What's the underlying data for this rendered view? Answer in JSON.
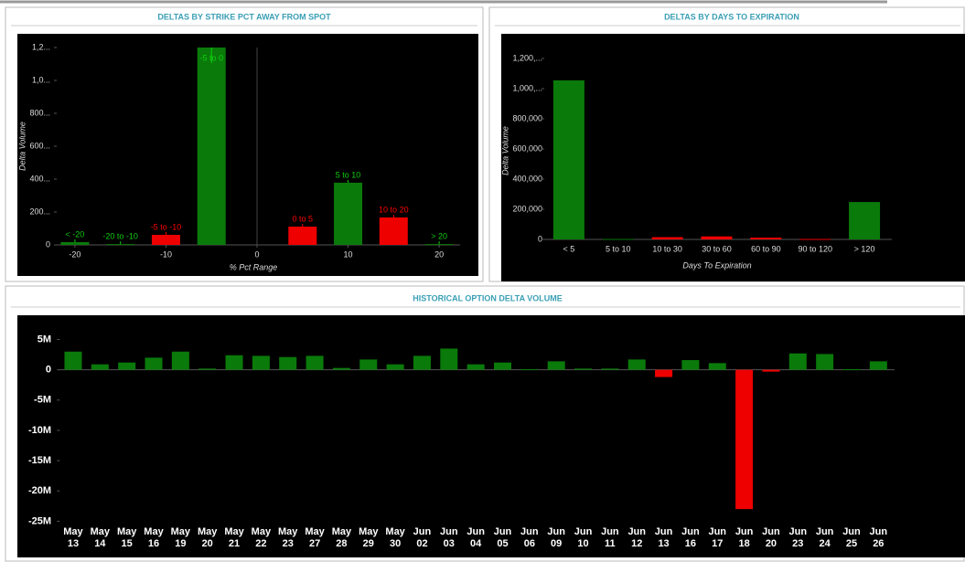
{
  "chart_data": [
    {
      "type": "bar",
      "title": "DELTAS BY STRIKE PCT AWAY FROM SPOT",
      "x_label": "% Pct Range",
      "y_label": "Delta Volume",
      "categories": [
        "< -20",
        "-20 to -10",
        "-5 to -10",
        "-5 to 0",
        "0 to 5",
        "5 to 10",
        "10 to 20",
        "> 20"
      ],
      "x": [
        -20,
        -15,
        -10,
        -5,
        5,
        10,
        15,
        20
      ],
      "values": [
        17,
        5,
        61,
        1200,
        111,
        378,
        167,
        5
      ],
      "colors": [
        "#0a7a0a",
        "#0a7a0a",
        "#ee0000",
        "#0a7a0a",
        "#ee0000",
        "#0a7a0a",
        "#ee0000",
        "#0a7a0a"
      ],
      "xlim": [
        -22,
        22
      ],
      "xticks": [
        -20,
        -10,
        0,
        10,
        20
      ],
      "ylim": [
        0,
        1200
      ],
      "yticks": [
        0,
        {
          "value": 200,
          "label": "200..."
        },
        {
          "value": 400,
          "label": "400..."
        },
        {
          "value": 600,
          "label": "600..."
        },
        {
          "value": 800,
          "label": "800..."
        },
        {
          "value": 1000,
          "label": "1,0..."
        },
        {
          "value": 1200,
          "label": "1,2..."
        }
      ]
    },
    {
      "type": "bar",
      "title": "DELTAS BY DAYS TO EXPIRATION",
      "x_label": "Days To Expiration",
      "y_label": "Delta Volume",
      "categories": [
        "< 5",
        "5 to 10",
        "10 to 30",
        "30 to 60",
        "60 to 90",
        "90 to 120",
        "> 120"
      ],
      "values": [
        1055000,
        3000,
        15000,
        20000,
        12000,
        3000,
        248000
      ],
      "colors": [
        "#0a7a0a",
        "#0a7a0a",
        "#ee0000",
        "#ee0000",
        "#ee0000",
        "#ee0000",
        "#0a7a0a"
      ],
      "ylim": [
        0,
        1200000
      ],
      "yticks": [
        0,
        {
          "value": 200000,
          "label": "200,000"
        },
        {
          "value": 400000,
          "label": "400,000"
        },
        {
          "value": 600000,
          "label": "600,000"
        },
        {
          "value": 800000,
          "label": "800,000"
        },
        {
          "value": 1000000,
          "label": "1,000,..."
        },
        {
          "value": 1200000,
          "label": "1,200,..."
        }
      ]
    },
    {
      "type": "bar",
      "title": "HISTORICAL OPTION DELTA VOLUME",
      "categories": [
        "May 13",
        "May 14",
        "May 15",
        "May 16",
        "May 19",
        "May 20",
        "May 21",
        "May 22",
        "May 23",
        "May 27",
        "May 28",
        "May 29",
        "May 30",
        "Jun 02",
        "Jun 03",
        "Jun 04",
        "Jun 05",
        "Jun 06",
        "Jun 09",
        "Jun 10",
        "Jun 11",
        "Jun 12",
        "Jun 13",
        "Jun 16",
        "Jun 17",
        "Jun 18",
        "Jun 20",
        "Jun 23",
        "Jun 24",
        "Jun 25",
        "Jun 26"
      ],
      "values": [
        3000000,
        900000,
        1200000,
        2000000,
        3000000,
        200000,
        2400000,
        2300000,
        2100000,
        2300000,
        300000,
        1700000,
        900000,
        2300000,
        3500000,
        900000,
        1200000,
        100000,
        1400000,
        200000,
        200000,
        1700000,
        -1200000,
        1600000,
        1100000,
        -23000000,
        -300000,
        2700000,
        2600000,
        100000,
        1400000
      ],
      "color": "#0a7a0a",
      "negative_color": "#ee0000",
      "ylim": [
        -26000000,
        9000000
      ],
      "yticks": [
        {
          "value": 5000000,
          "label": "5M"
        },
        0,
        {
          "value": -5000000,
          "label": "-5M"
        },
        {
          "value": -10000000,
          "label": "-10M"
        },
        {
          "value": -15000000,
          "label": "-15M"
        },
        {
          "value": -20000000,
          "label": "-20M"
        },
        {
          "value": -25000000,
          "label": "-25M"
        }
      ]
    }
  ]
}
